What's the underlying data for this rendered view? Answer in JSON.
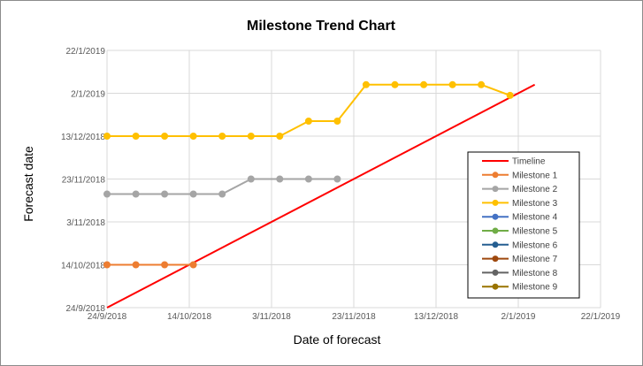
{
  "chart_data": {
    "type": "line",
    "title": "Milestone Trend Chart",
    "xlabel": "Date of forecast",
    "ylabel": "Forecast date",
    "x_ticks": [
      "24/9/2018",
      "14/10/2018",
      "3/11/2018",
      "23/11/2018",
      "13/12/2018",
      "2/1/2019",
      "22/1/2019"
    ],
    "y_ticks": [
      "24/9/2018",
      "14/10/2018",
      "3/11/2018",
      "23/11/2018",
      "13/12/2018",
      "2/1/2019",
      "22/1/2019"
    ],
    "xlim": [
      "2018-09-24",
      "2019-01-22"
    ],
    "ylim": [
      "2018-09-24",
      "2019-01-22"
    ],
    "grid": true,
    "legend_position": "right",
    "series": [
      {
        "name": "Timeline",
        "color": "#ff0000",
        "markers": false,
        "points": [
          [
            "2018-09-24",
            "2018-09-24"
          ],
          [
            "2019-01-06",
            "2019-01-06"
          ]
        ]
      },
      {
        "name": "Milestone 1",
        "color": "#ed7d31",
        "markers": true,
        "points": [
          [
            "2018-09-24",
            "2018-10-14"
          ],
          [
            "2018-10-01",
            "2018-10-14"
          ],
          [
            "2018-10-08",
            "2018-10-14"
          ],
          [
            "2018-10-15",
            "2018-10-14"
          ]
        ]
      },
      {
        "name": "Milestone 2",
        "color": "#a5a5a5",
        "markers": true,
        "points": [
          [
            "2018-09-24",
            "2018-11-16"
          ],
          [
            "2018-10-01",
            "2018-11-16"
          ],
          [
            "2018-10-08",
            "2018-11-16"
          ],
          [
            "2018-10-15",
            "2018-11-16"
          ],
          [
            "2018-10-22",
            "2018-11-16"
          ],
          [
            "2018-10-29",
            "2018-11-23"
          ],
          [
            "2018-11-05",
            "2018-11-23"
          ],
          [
            "2018-11-12",
            "2018-11-23"
          ],
          [
            "2018-11-19",
            "2018-11-23"
          ]
        ]
      },
      {
        "name": "Milestone 3",
        "color": "#ffc000",
        "markers": true,
        "points": [
          [
            "2018-09-24",
            "2018-12-13"
          ],
          [
            "2018-10-01",
            "2018-12-13"
          ],
          [
            "2018-10-08",
            "2018-12-13"
          ],
          [
            "2018-10-15",
            "2018-12-13"
          ],
          [
            "2018-10-22",
            "2018-12-13"
          ],
          [
            "2018-10-29",
            "2018-12-13"
          ],
          [
            "2018-11-05",
            "2018-12-13"
          ],
          [
            "2018-11-12",
            "2018-12-20"
          ],
          [
            "2018-11-19",
            "2018-12-20"
          ],
          [
            "2018-11-26",
            "2019-01-06"
          ],
          [
            "2018-12-03",
            "2019-01-06"
          ],
          [
            "2018-12-10",
            "2019-01-06"
          ],
          [
            "2018-12-17",
            "2019-01-06"
          ],
          [
            "2018-12-24",
            "2019-01-06"
          ],
          [
            "2018-12-31",
            "2019-01-01"
          ]
        ]
      },
      {
        "name": "Milestone 4",
        "color": "#4472c4",
        "markers": true,
        "points": []
      },
      {
        "name": "Milestone 5",
        "color": "#70ad47",
        "markers": true,
        "points": []
      },
      {
        "name": "Milestone 6",
        "color": "#255e91",
        "markers": true,
        "points": []
      },
      {
        "name": "Milestone 7",
        "color": "#9e480e",
        "markers": true,
        "points": []
      },
      {
        "name": "Milestone 8",
        "color": "#636363",
        "markers": true,
        "points": []
      },
      {
        "name": "Milestone 9",
        "color": "#997300",
        "markers": true,
        "points": []
      }
    ]
  }
}
